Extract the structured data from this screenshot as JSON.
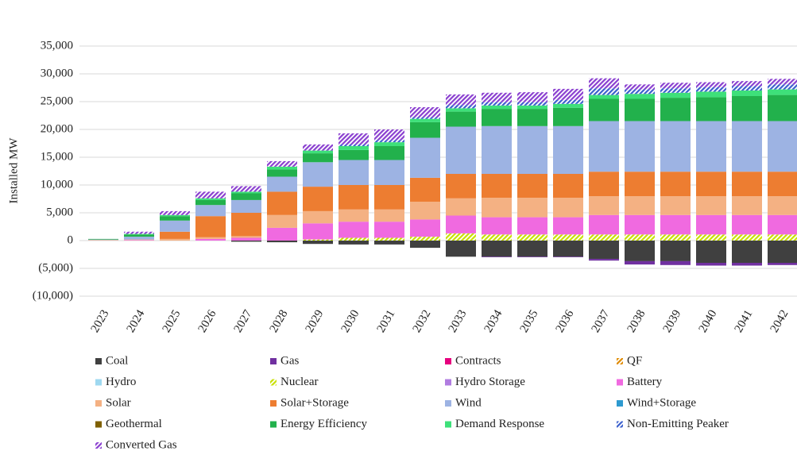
{
  "chart_data": {
    "type": "bar",
    "stacked": true,
    "y_label": "Installed MW",
    "categories": [
      "2023",
      "2024",
      "2025",
      "2026",
      "2027",
      "2028",
      "2029",
      "2030",
      "2031",
      "2032",
      "2033",
      "2034",
      "2035",
      "2036",
      "2037",
      "2038",
      "2039",
      "2040",
      "2041",
      "2042"
    ],
    "ylim": [
      -10000,
      35000
    ],
    "yticks": [
      {
        "value": -10000,
        "label": "(10,000)"
      },
      {
        "value": -5000,
        "label": "(5,000)"
      },
      0,
      {
        "value": 5000,
        "label": "5,000"
      },
      {
        "value": 10000,
        "label": "10,000"
      },
      {
        "value": 15000,
        "label": "15,000"
      },
      {
        "value": 20000,
        "label": "20,000"
      },
      {
        "value": 25000,
        "label": "25,000"
      },
      {
        "value": 30000,
        "label": "30,000"
      },
      {
        "value": 35000,
        "label": "35,000"
      }
    ],
    "grid": true,
    "legend": "bottom",
    "series": [
      {
        "name": "Coal",
        "color": "#404040",
        "values": [
          0,
          0,
          0,
          0,
          -200,
          -300,
          -600,
          -700,
          -700,
          -1300,
          -2900,
          -2900,
          -2900,
          -2900,
          -3300,
          -3700,
          -3700,
          -4000,
          -4000,
          -4000
        ]
      },
      {
        "name": "Gas",
        "color": "#7030a0",
        "values": [
          0,
          0,
          0,
          0,
          0,
          0,
          0,
          0,
          0,
          0,
          0,
          -100,
          -100,
          -100,
          -300,
          -600,
          -700,
          -500,
          -500,
          -400
        ]
      },
      {
        "name": "Contracts",
        "color": "#e6007e",
        "values": [
          0,
          0,
          0,
          0,
          0,
          0,
          0,
          0,
          0,
          0,
          0,
          0,
          0,
          0,
          0,
          0,
          0,
          0,
          0,
          0
        ]
      },
      {
        "name": "QF",
        "color": "#e08a00",
        "hatch": true,
        "values": [
          0,
          0,
          0,
          0,
          0,
          0,
          0,
          0,
          0,
          0,
          0,
          0,
          0,
          0,
          0,
          0,
          0,
          0,
          0,
          0
        ]
      },
      {
        "name": "Hydro",
        "color": "#9ed8f0",
        "values": [
          0,
          0,
          0,
          0,
          0,
          0,
          0,
          0,
          0,
          0,
          0,
          0,
          0,
          0,
          0,
          0,
          0,
          0,
          0,
          0
        ]
      },
      {
        "name": "Nuclear",
        "color": "#c8e000",
        "hatch": true,
        "values": [
          0,
          0,
          0,
          0,
          0,
          0,
          200,
          500,
          500,
          700,
          1300,
          1100,
          1100,
          1100,
          1100,
          1100,
          1100,
          1100,
          1100,
          1100
        ]
      },
      {
        "name": "Hydro Storage",
        "color": "#b07ce0",
        "values": [
          0,
          0,
          0,
          0,
          0,
          0,
          0,
          0,
          0,
          0,
          0,
          0,
          0,
          0,
          0,
          0,
          0,
          0,
          0,
          0
        ]
      },
      {
        "name": "Battery",
        "color": "#f06ae0",
        "values": [
          0,
          100,
          0,
          300,
          500,
          2300,
          2900,
          2900,
          2900,
          3100,
          3200,
          3100,
          3100,
          3100,
          3500,
          3500,
          3500,
          3500,
          3500,
          3500
        ]
      },
      {
        "name": "Solar",
        "color": "#f4b183",
        "values": [
          100,
          100,
          300,
          300,
          300,
          2300,
          2200,
          2200,
          2200,
          3200,
          3100,
          3500,
          3500,
          3500,
          3400,
          3400,
          3400,
          3400,
          3400,
          3400
        ]
      },
      {
        "name": "Solar+Storage",
        "color": "#ed7d31",
        "values": [
          0,
          0,
          1300,
          3800,
          4200,
          4200,
          4400,
          4400,
          4400,
          4300,
          4400,
          4300,
          4300,
          4300,
          4400,
          4400,
          4400,
          4400,
          4400,
          4400
        ]
      },
      {
        "name": "Wind",
        "color": "#9db3e3",
        "values": [
          100,
          500,
          2000,
          2000,
          2300,
          2700,
          4400,
          4500,
          4500,
          7200,
          8500,
          8600,
          8600,
          8600,
          9100,
          9100,
          9100,
          9100,
          9100,
          9100
        ]
      },
      {
        "name": "Wind+Storage",
        "color": "#2e9ad0",
        "values": [
          0,
          0,
          0,
          0,
          0,
          0,
          0,
          0,
          0,
          0,
          0,
          0,
          0,
          0,
          0,
          0,
          0,
          0,
          0,
          0
        ]
      },
      {
        "name": "Geothermal",
        "color": "#7f6000",
        "values": [
          0,
          0,
          0,
          0,
          0,
          0,
          0,
          0,
          0,
          0,
          0,
          0,
          0,
          0,
          0,
          0,
          0,
          0,
          0,
          0
        ]
      },
      {
        "name": "Energy Efficiency",
        "color": "#22b14c",
        "values": [
          100,
          400,
          800,
          900,
          1200,
          1300,
          1600,
          1800,
          2500,
          2800,
          2700,
          3100,
          3100,
          3300,
          4000,
          4000,
          4200,
          4300,
          4500,
          4700
        ]
      },
      {
        "name": "Demand Response",
        "color": "#3ee07a",
        "values": [
          0,
          100,
          200,
          300,
          300,
          500,
          500,
          700,
          700,
          600,
          600,
          600,
          600,
          700,
          700,
          900,
          900,
          1000,
          1000,
          1000
        ]
      },
      {
        "name": "Non-Emitting Peaker",
        "color": "#3a5fcd",
        "hatch": true,
        "values": [
          0,
          0,
          0,
          0,
          0,
          0,
          0,
          300,
          400,
          300,
          600,
          600,
          600,
          700,
          1200,
          800,
          800,
          800,
          800,
          900
        ]
      },
      {
        "name": "Converted Gas",
        "color": "#8a3fd0",
        "hatch": true,
        "values": [
          0,
          400,
          700,
          1200,
          1000,
          1000,
          1100,
          2000,
          1900,
          1800,
          1900,
          1700,
          1800,
          2000,
          1800,
          900,
          1000,
          900,
          900,
          1000
        ]
      }
    ]
  }
}
